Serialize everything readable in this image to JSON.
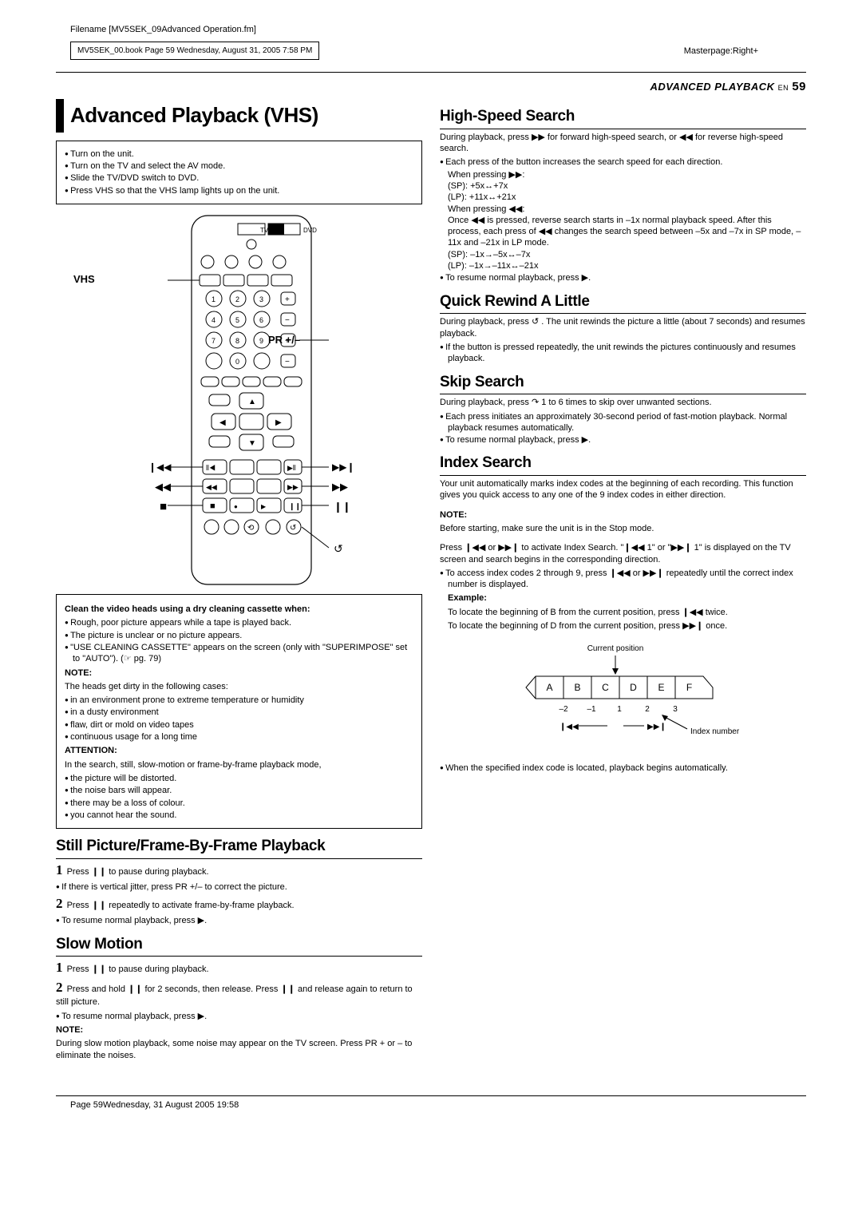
{
  "meta": {
    "filename": "Filename [MV5SEK_09Advanced Operation.fm]",
    "bookinfo": "MV5SEK_00.book  Page 59  Wednesday, August 31, 2005  7:58 PM",
    "masterpage": "Masterpage:Right+",
    "footer": "Page 59Wednesday, 31 August 2005  19:58"
  },
  "header": {
    "section": "ADVANCED PLAYBACK",
    "lang": "EN",
    "page": "59"
  },
  "left": {
    "title": "Advanced Playback (VHS)",
    "setup_box": [
      "Turn on the unit.",
      "Turn on the TV and select the AV mode.",
      "Slide the TV/DVD switch to DVD.",
      "Press VHS so that the VHS lamp lights up on the unit."
    ],
    "remote_labels": {
      "vhs": "VHS",
      "pr": "PR +/–",
      "tv": "TV",
      "dvd": "DVD"
    },
    "clean_heading": "Clean the video heads using a dry cleaning cassette when:",
    "clean_items": [
      "Rough, poor picture appears while a tape is played back.",
      "The picture is unclear or no picture appears.",
      "\"USE CLEANING CASSETTE\" appears on the screen (only with \"SUPERIMPOSE\" set to \"AUTO\"). (☞ pg. 79)"
    ],
    "note1_h": "NOTE:",
    "note1_intro": "The heads get dirty in the following cases:",
    "note1_items": [
      "in an environment prone to extreme temperature or humidity",
      "in a dusty environment",
      "flaw, dirt or mold on video tapes",
      "continuous usage for a long time"
    ],
    "att_h": "ATTENTION:",
    "att_intro": "In the search, still, slow-motion or frame-by-frame playback mode,",
    "att_items": [
      "the picture will be distorted.",
      "the noise bars will appear.",
      "there may be a loss of colour.",
      "you cannot hear the sound."
    ],
    "still_h": "Still Picture/Frame-By-Frame Playback",
    "still_steps": [
      "Press ❙❙ to pause during playback.",
      "If there is vertical jitter, press PR +/– to correct the picture.",
      "Press ❙❙ repeatedly to activate frame-by-frame playback.",
      "To resume normal playback, press ▶."
    ],
    "slow_h": "Slow Motion",
    "slow_steps": [
      "Press ❙❙ to pause during playback.",
      "Press and hold ❙❙ for 2 seconds, then release. Press ❙❙ and release again to return to still picture.",
      "To resume normal playback, press ▶."
    ],
    "slow_note_h": "NOTE:",
    "slow_note": "During slow motion playback, some noise may appear on the TV screen. Press PR + or – to eliminate the noises."
  },
  "right": {
    "hs_h": "High-Speed Search",
    "hs_intro": "During playback, press ▶▶ for forward high-speed search, or ◀◀ for reverse high-speed search.",
    "hs_items": [
      "Each press of the button increases the search speed for each direction.",
      "When pressing ▶▶:",
      "(SP): +5x↔+7x",
      "(LP): +11x↔+21x",
      "When pressing ◀◀:",
      "Once ◀◀ is pressed, reverse search starts in –1x normal playback speed. After this process, each press of ◀◀ changes the search speed between –5x and –7x in SP mode, –11x and –21x in LP mode.",
      "(SP): –1x→–5x↔–7x",
      "(LP): –1x→–11x↔–21x",
      "To resume normal playback, press ▶."
    ],
    "qr_h": "Quick Rewind A Little",
    "qr_intro": "During playback, press ↺ . The unit rewinds the picture a little (about 7 seconds) and resumes playback.",
    "qr_items": [
      "If the button is pressed repeatedly, the unit rewinds the pictures continuously and resumes playback."
    ],
    "skip_h": "Skip Search",
    "skip_intro": "During playback, press ↷ 1 to 6 times to skip over unwanted sections.",
    "skip_items": [
      "Each press initiates an approximately 30-second period of fast-motion playback. Normal playback resumes automatically.",
      "To resume normal playback, press ▶."
    ],
    "idx_h": "Index Search",
    "idx_intro": "Your unit automatically marks index codes at the beginning of each recording. This function gives you quick access to any one of the 9 index codes in either direction.",
    "idx_note_h": "NOTE:",
    "idx_note": "Before starting, make sure the unit is in the Stop mode.",
    "idx_p1": "Press ❙◀◀ or ▶▶❙ to activate Index Search. \"❙◀◀ 1\" or \"▶▶❙ 1\" is displayed on the TV screen and search begins in the corresponding direction.",
    "idx_items": [
      "To access index codes 2 through 9, press ❙◀◀ or ▶▶❙ repeatedly until the correct index number is displayed."
    ],
    "idx_ex_h": "Example:",
    "idx_ex1": "To locate the beginning of B from the current position, press ❙◀◀ twice.",
    "idx_ex2": "To locate the beginning of D from the current position, press ▶▶❙ once.",
    "diagram": {
      "current": "Current position",
      "cells": [
        "A",
        "B",
        "C",
        "D",
        "E",
        "F"
      ],
      "nums": [
        "–2",
        "–1",
        "1",
        "2",
        "3"
      ],
      "index_label": "Index number",
      "left_sym": "❙◀◀",
      "right_sym": "▶▶❙"
    },
    "idx_end": "When the specified index code is located, playback begins automatically."
  }
}
